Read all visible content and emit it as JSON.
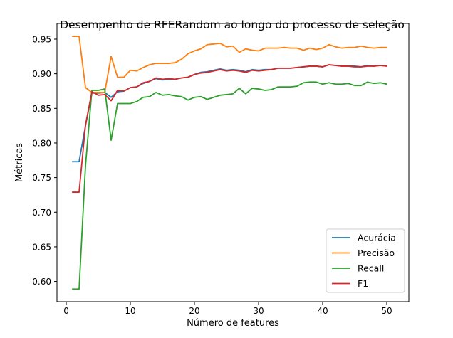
{
  "chart_data": {
    "type": "line",
    "title": "Desempenho de RFERandom ao longo do processo de seleção",
    "xlabel": "Número de features",
    "ylabel": "Métricas",
    "xlim": [
      -1.45,
      53.45
    ],
    "ylim": [
      0.5708,
      0.9726
    ],
    "x_ticks": [
      0,
      10,
      20,
      30,
      40,
      50
    ],
    "x_tick_labels": [
      "0",
      "10",
      "20",
      "30",
      "40",
      "50"
    ],
    "y_ticks": [
      0.6,
      0.65,
      0.7,
      0.75,
      0.8,
      0.85,
      0.9,
      0.95
    ],
    "y_tick_labels": [
      "0.60",
      "0.65",
      "0.70",
      "0.75",
      "0.80",
      "0.85",
      "0.90",
      "0.95"
    ],
    "grid": false,
    "legend_position": "lower-right",
    "x": [
      1,
      2,
      3,
      4,
      5,
      6,
      7,
      8,
      9,
      10,
      11,
      12,
      13,
      14,
      15,
      16,
      17,
      18,
      19,
      20,
      21,
      22,
      23,
      24,
      25,
      26,
      27,
      28,
      29,
      30,
      31,
      32,
      33,
      34,
      35,
      36,
      37,
      38,
      39,
      40,
      41,
      42,
      43,
      44,
      45,
      46,
      47,
      48,
      49,
      50
    ],
    "series": [
      {
        "name": "Acurácia",
        "color": "#1f77b4",
        "values": [
          0.773,
          0.773,
          0.825,
          0.872,
          0.872,
          0.873,
          0.866,
          0.874,
          0.875,
          0.88,
          0.881,
          0.886,
          0.889,
          0.893,
          0.891,
          0.892,
          0.892,
          0.894,
          0.895,
          0.899,
          0.902,
          0.903,
          0.905,
          0.907,
          0.905,
          0.906,
          0.905,
          0.903,
          0.906,
          0.905,
          0.906,
          0.906,
          0.908,
          0.908,
          0.908,
          0.909,
          0.91,
          0.911,
          0.911,
          0.91,
          0.913,
          0.912,
          0.911,
          0.911,
          0.911,
          0.91,
          0.912,
          0.911,
          0.912,
          0.911
        ]
      },
      {
        "name": "Precisão",
        "color": "#ff7f0e",
        "values": [
          0.954,
          0.954,
          0.88,
          0.873,
          0.873,
          0.873,
          0.925,
          0.895,
          0.895,
          0.905,
          0.904,
          0.909,
          0.913,
          0.915,
          0.915,
          0.915,
          0.916,
          0.921,
          0.929,
          0.933,
          0.936,
          0.942,
          0.943,
          0.944,
          0.939,
          0.94,
          0.931,
          0.936,
          0.934,
          0.933,
          0.937,
          0.937,
          0.937,
          0.938,
          0.937,
          0.937,
          0.934,
          0.937,
          0.935,
          0.937,
          0.942,
          0.939,
          0.937,
          0.938,
          0.938,
          0.94,
          0.938,
          0.937,
          0.938,
          0.938
        ]
      },
      {
        "name": "Recall",
        "color": "#2ca02c",
        "values": [
          0.589,
          0.589,
          0.767,
          0.876,
          0.876,
          0.878,
          0.804,
          0.857,
          0.857,
          0.857,
          0.86,
          0.866,
          0.867,
          0.873,
          0.869,
          0.87,
          0.868,
          0.867,
          0.862,
          0.866,
          0.867,
          0.863,
          0.866,
          0.869,
          0.87,
          0.871,
          0.879,
          0.871,
          0.879,
          0.878,
          0.876,
          0.877,
          0.881,
          0.881,
          0.881,
          0.882,
          0.887,
          0.888,
          0.888,
          0.885,
          0.887,
          0.885,
          0.885,
          0.886,
          0.883,
          0.883,
          0.888,
          0.886,
          0.887,
          0.885
        ]
      },
      {
        "name": "F1",
        "color": "#d62728",
        "values": [
          0.729,
          0.729,
          0.826,
          0.874,
          0.869,
          0.87,
          0.861,
          0.876,
          0.875,
          0.88,
          0.881,
          0.887,
          0.889,
          0.894,
          0.892,
          0.893,
          0.892,
          0.894,
          0.895,
          0.899,
          0.901,
          0.902,
          0.904,
          0.906,
          0.904,
          0.905,
          0.904,
          0.902,
          0.905,
          0.904,
          0.905,
          0.906,
          0.908,
          0.908,
          0.908,
          0.909,
          0.91,
          0.911,
          0.911,
          0.91,
          0.913,
          0.912,
          0.911,
          0.911,
          0.91,
          0.91,
          0.911,
          0.911,
          0.912,
          0.911
        ]
      }
    ]
  }
}
